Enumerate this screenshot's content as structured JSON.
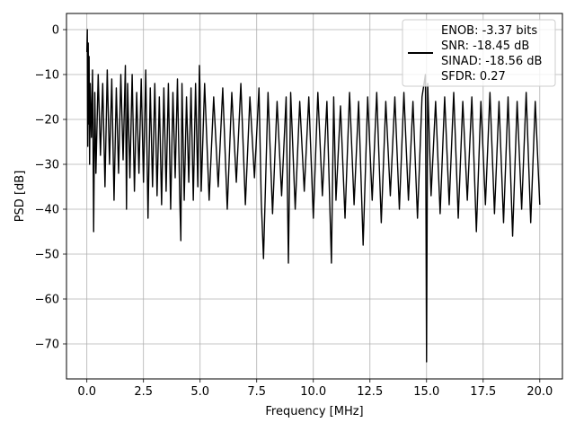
{
  "chart_data": {
    "type": "line",
    "title": "",
    "xlabel": "Frequency [MHz]",
    "ylabel": "PSD [dB]",
    "xlim": [
      -0.9,
      21.0
    ],
    "ylim": [
      -77.8,
      3.6
    ],
    "xticks": [
      0.0,
      2.5,
      5.0,
      7.5,
      10.0,
      12.5,
      15.0,
      17.5,
      20.0
    ],
    "xtick_labels": [
      "0.0",
      "2.5",
      "5.0",
      "7.5",
      "10.0",
      "12.5",
      "15.0",
      "17.5",
      "20.0"
    ],
    "yticks": [
      0,
      -10,
      -20,
      -30,
      -40,
      -50,
      -60,
      -70
    ],
    "ytick_labels": [
      "0",
      "−10",
      "−20",
      "−30",
      "−40",
      "−50",
      "−60",
      "−70"
    ],
    "grid": true,
    "legend_position": "top-right",
    "legend": {
      "lines": [
        "ENOB: -3.37 bits",
        "SNR: -18.45 dB",
        "SINAD: -18.56 dB",
        "SFDR: 0.27"
      ]
    },
    "series": [
      {
        "color": "#000000",
        "x": [
          0.0,
          0.02,
          0.04,
          0.06,
          0.08,
          0.1,
          0.12,
          0.15,
          0.2,
          0.25,
          0.3,
          0.35,
          0.4,
          0.5,
          0.6,
          0.7,
          0.8,
          0.9,
          1.0,
          1.1,
          1.2,
          1.3,
          1.4,
          1.5,
          1.6,
          1.7,
          1.75,
          1.8,
          1.9,
          2.0,
          2.1,
          2.2,
          2.3,
          2.4,
          2.5,
          2.6,
          2.7,
          2.8,
          2.9,
          3.0,
          3.1,
          3.2,
          3.3,
          3.4,
          3.5,
          3.6,
          3.7,
          3.8,
          3.9,
          4.0,
          4.1,
          4.15,
          4.2,
          4.3,
          4.4,
          4.5,
          4.6,
          4.7,
          4.8,
          4.9,
          4.97,
          5.0,
          5.05,
          5.2,
          5.4,
          5.6,
          5.8,
          6.0,
          6.2,
          6.4,
          6.6,
          6.8,
          7.0,
          7.2,
          7.4,
          7.6,
          7.7,
          7.8,
          8.0,
          8.2,
          8.4,
          8.6,
          8.8,
          8.9,
          9.0,
          9.2,
          9.4,
          9.6,
          9.8,
          10.0,
          10.2,
          10.4,
          10.6,
          10.8,
          10.9,
          11.0,
          11.2,
          11.4,
          11.6,
          11.8,
          12.0,
          12.2,
          12.4,
          12.6,
          12.8,
          13.0,
          13.2,
          13.4,
          13.6,
          13.8,
          14.0,
          14.2,
          14.4,
          14.6,
          14.8,
          14.95,
          15.0,
          15.05,
          15.2,
          15.4,
          15.6,
          15.8,
          16.0,
          16.2,
          16.4,
          16.6,
          16.8,
          17.0,
          17.2,
          17.4,
          17.6,
          17.8,
          18.0,
          18.2,
          18.4,
          18.6,
          18.8,
          19.0,
          19.2,
          19.4,
          19.6,
          19.8,
          20.0
        ],
        "y": [
          -5,
          0,
          -26,
          -3,
          -21,
          -6,
          -30,
          -12,
          -24,
          -9,
          -45,
          -14,
          -32,
          -10,
          -28,
          -12,
          -35,
          -9,
          -30,
          -11,
          -38,
          -13,
          -32,
          -10,
          -29,
          -8,
          -40,
          -12,
          -33,
          -10,
          -36,
          -14,
          -32,
          -11,
          -34,
          -9,
          -42,
          -13,
          -35,
          -12,
          -37,
          -15,
          -39,
          -13,
          -36,
          -12,
          -40,
          -14,
          -33,
          -11,
          -37,
          -47,
          -12,
          -38,
          -15,
          -34,
          -13,
          -38,
          -12,
          -35,
          -8,
          -14,
          -36,
          -12,
          -38,
          -15,
          -35,
          -13,
          -40,
          -14,
          -34,
          -12,
          -39,
          -15,
          -33,
          -13,
          -38,
          -51,
          -14,
          -41,
          -16,
          -37,
          -15,
          -52,
          -14,
          -40,
          -16,
          -36,
          -15,
          -42,
          -14,
          -37,
          -16,
          -52,
          -15,
          -38,
          -17,
          -42,
          -14,
          -39,
          -16,
          -48,
          -15,
          -38,
          -14,
          -43,
          -16,
          -37,
          -15,
          -40,
          -14,
          -38,
          -16,
          -42,
          -15,
          -10,
          -74,
          -12,
          -37,
          -16,
          -41,
          -15,
          -39,
          -14,
          -42,
          -16,
          -38,
          -15,
          -45,
          -16,
          -39,
          -14,
          -41,
          -16,
          -43,
          -15,
          -46,
          -16,
          -40,
          -14,
          -43,
          -16,
          -39
        ]
      }
    ]
  }
}
